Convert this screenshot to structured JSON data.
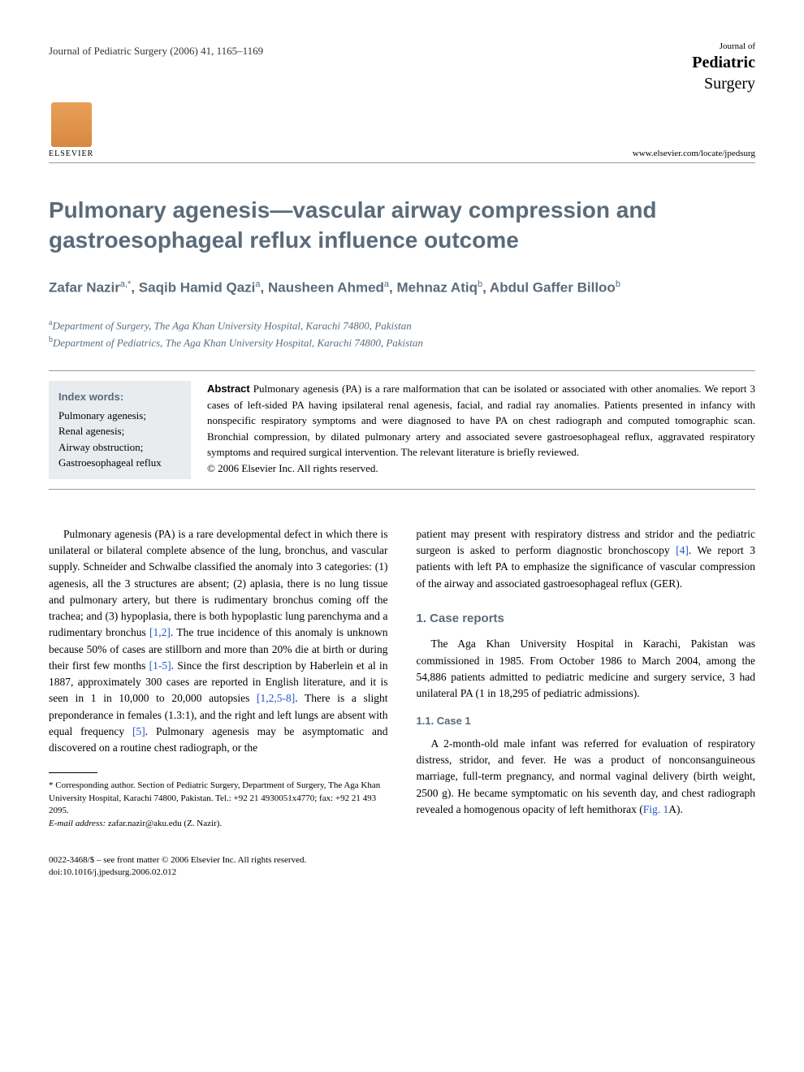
{
  "header": {
    "citation": "Journal of Pediatric Surgery (2006) 41, 1165–1169",
    "journal_small": "Journal of",
    "journal_large": "Pediatric",
    "journal_sub": "Surgery",
    "elsevier_label": "ELSEVIER",
    "journal_url": "www.elsevier.com/locate/jpedsurg"
  },
  "title": "Pulmonary agenesis—vascular airway compression and gastroesophageal reflux influence outcome",
  "authors_html": "Zafar Nazir<sup>a,*</sup>, Saqib Hamid Qazi<sup>a</sup>, Nausheen Ahmed<sup>a</sup>, Mehnaz Atiq<sup>b</sup>, Abdul Gaffer Billoo<sup>b</sup>",
  "affiliations": [
    {
      "sup": "a",
      "text": "Department of Surgery, The Aga Khan University Hospital, Karachi 74800, Pakistan"
    },
    {
      "sup": "b",
      "text": "Department of Pediatrics, The Aga Khan University Hospital, Karachi 74800, Pakistan"
    }
  ],
  "index": {
    "title": "Index words:",
    "items": [
      "Pulmonary agenesis;",
      "Renal agenesis;",
      "Airway obstruction;",
      "Gastroesophageal reflux"
    ]
  },
  "abstract": {
    "label": "Abstract",
    "text": " Pulmonary agenesis (PA) is a rare malformation that can be isolated or associated with other anomalies. We report 3 cases of left-sided PA having ipsilateral renal agenesis, facial, and radial ray anomalies. Patients presented in infancy with nonspecific respiratory symptoms and were diagnosed to have PA on chest radiograph and computed tomographic scan. Bronchial compression, by dilated pulmonary artery and associated severe gastroesophageal reflux, aggravated respiratory symptoms and required surgical intervention. The relevant literature is briefly reviewed.",
    "copyright": "© 2006 Elsevier Inc. All rights reserved."
  },
  "body": {
    "left_col": {
      "p1_pre": "Pulmonary agenesis (PA) is a rare developmental defect in which there is unilateral or bilateral complete absence of the lung, bronchus, and vascular supply. Schneider and Schwalbe classified the anomaly into 3 categories: (1) agenesis, all the 3 structures are absent; (2) aplasia, there is no lung tissue and pulmonary artery, but there is rudimentary bronchus coming off the trachea; and (3) hypoplasia, there is both hypoplastic lung parenchyma and a rudimentary bronchus ",
      "ref1": "[1,2]",
      "p1_mid1": ". The true incidence of this anomaly is unknown because 50% of cases are stillborn and more than 20% die at birth or during their first few months ",
      "ref2": "[1-5]",
      "p1_mid2": ". Since the first description by Haberlein et al in 1887, approximately 300 cases are reported in English literature, and it is seen in 1 in 10,000 to 20,000 autopsies ",
      "ref3": "[1,2,5-8]",
      "p1_mid3": ". There is a slight preponderance in females (1.3:1), and the right and left lungs are absent with equal frequency ",
      "ref4": "[5]",
      "p1_end": ". Pulmonary agenesis may be asymptomatic and discovered on a routine chest radiograph, or the"
    },
    "right_col": {
      "p1_pre": "patient may present with respiratory distress and stridor and the pediatric surgeon is asked to perform diagnostic bronchoscopy ",
      "ref1": "[4]",
      "p1_end": ". We report 3 patients with left PA to emphasize the significance of vascular compression of the airway and associated gastroesophageal reflux (GER).",
      "sec1_title": "1. Case reports",
      "sec1_p1": "The Aga Khan University Hospital in Karachi, Pakistan was commissioned in 1985. From October 1986 to March 2004, among the 54,886 patients admitted to pediatric medicine and surgery service, 3 had unilateral PA (1 in 18,295 of pediatric admissions).",
      "sec1_1_title": "1.1. Case 1",
      "sec1_1_p1_pre": "A 2-month-old male infant was referred for evaluation of respiratory distress, stridor, and fever. He was a product of nonconsanguineous marriage, full-term pregnancy, and normal vaginal delivery (birth weight, 2500 g). He became symptomatic on his seventh day, and chest radiograph revealed a homogenous opacity of left hemithorax (",
      "fig_ref": "Fig. 1",
      "sec1_1_p1_end": "A)."
    }
  },
  "footnote": {
    "corr": "* Corresponding author. Section of Pediatric Surgery, Department of Surgery, The Aga Khan University Hospital, Karachi 74800, Pakistan. Tel.: +92 21 4930051x4770; fax: +92 21 493 2095.",
    "email_label": "E-mail address:",
    "email": " zafar.nazir@aku.edu (Z. Nazir)."
  },
  "bottom": {
    "line1": "0022-3468/$ – see front matter © 2006 Elsevier Inc. All rights reserved.",
    "line2": "doi:10.1016/j.jpedsurg.2006.02.012"
  },
  "colors": {
    "heading": "#5a6b7a",
    "link": "#2255cc",
    "index_bg": "#e8ecef"
  }
}
